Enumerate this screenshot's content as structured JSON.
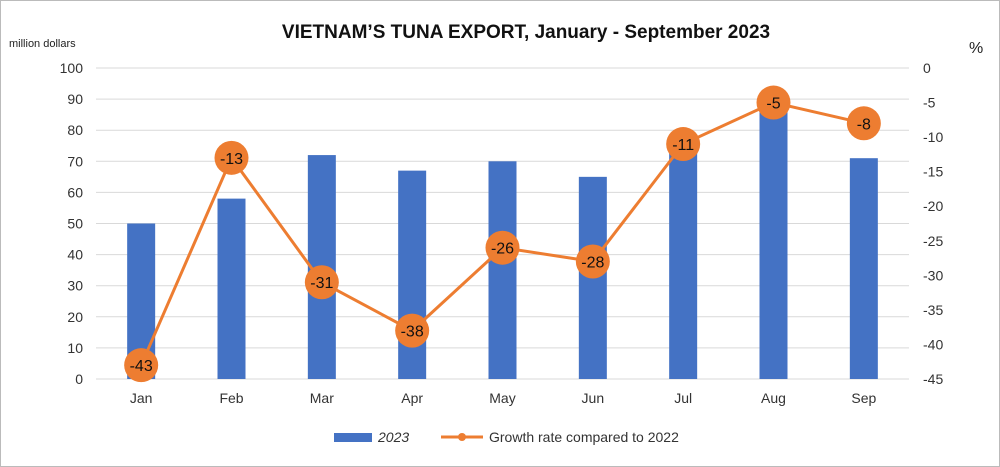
{
  "chart_data": {
    "type": "bar+line",
    "title": "VIETNAM’S TUNA EXPORT, January - September 2023",
    "ylabel_left": "million dollars",
    "ylabel_right": "%",
    "categories": [
      "Jan",
      "Feb",
      "Mar",
      "Apr",
      "May",
      "Jun",
      "Jul",
      "Aug",
      "Sep"
    ],
    "ylim_left": [
      0,
      100
    ],
    "yticks_left": [
      0,
      10,
      20,
      30,
      40,
      50,
      60,
      70,
      80,
      90,
      100
    ],
    "ylim_right": [
      -45,
      0
    ],
    "yticks_right": [
      0,
      -5,
      -10,
      -15,
      -20,
      -25,
      -30,
      -35,
      -40,
      -45
    ],
    "grid": true,
    "legend_position": "bottom",
    "series": [
      {
        "name": "2023",
        "type": "bar",
        "axis": "left",
        "color": "#4472C4",
        "values": [
          50,
          58,
          72,
          67,
          70,
          65,
          75,
          90,
          71
        ]
      },
      {
        "name": "Growth rate compared to 2022",
        "type": "line",
        "axis": "right",
        "color": "#ED7D31",
        "values": [
          -43,
          -13,
          -31,
          -38,
          -26,
          -28,
          -11,
          -5,
          -8
        ]
      }
    ]
  }
}
